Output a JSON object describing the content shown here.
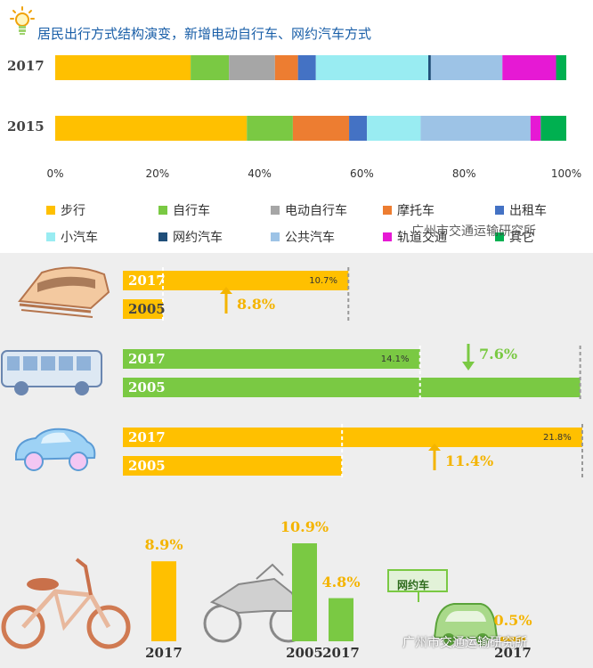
{
  "title": "居民出行方式结构演变，新增电动自行车、网约汽车方式",
  "chart_data": [
    {
      "type": "bar",
      "stacked": true,
      "orientation": "horizontal",
      "categories": [
        "2017",
        "2015"
      ],
      "xlim": [
        0,
        100
      ],
      "xticks": [
        "0%",
        "20%",
        "40%",
        "60%",
        "80%",
        "100%"
      ],
      "legend_position": "bottom",
      "series": [
        {
          "name": "步行",
          "color": "#ffc000",
          "values": [
            26.5,
            37.5
          ]
        },
        {
          "name": "自行车",
          "color": "#7ac943",
          "values": [
            7.5,
            9.0
          ]
        },
        {
          "name": "电动自行车",
          "color": "#a6a6a6",
          "values": [
            9.0,
            0
          ]
        },
        {
          "name": "摩托车",
          "color": "#ed7d31",
          "values": [
            4.5,
            11.0
          ]
        },
        {
          "name": "出租车",
          "color": "#4472c4",
          "values": [
            3.5,
            3.5
          ]
        },
        {
          "name": "小汽车",
          "color": "#99ecf2",
          "values": [
            22.0,
            10.5
          ]
        },
        {
          "name": "网约汽车",
          "color": "#1f4e79",
          "values": [
            0.5,
            0
          ]
        },
        {
          "name": "公共汽车",
          "color": "#9dc3e6",
          "values": [
            14.0,
            21.5
          ]
        },
        {
          "name": "轨道交通",
          "color": "#e619d4",
          "values": [
            10.5,
            2.0
          ]
        },
        {
          "name": "其它",
          "color": "#00b050",
          "values": [
            2.0,
            5.0
          ]
        }
      ]
    },
    {
      "type": "bar",
      "orientation": "horizontal",
      "groups": [
        {
          "mode": "轨道交通",
          "color": "#ffc000",
          "v2017": 10.7,
          "label2017": "10.7%",
          "v2005": 1.9,
          "change": "8.8%",
          "direction": "up",
          "year_a": "2017",
          "year_b": "2005"
        },
        {
          "mode": "公共汽车",
          "color": "#7ac943",
          "v2017": 14.1,
          "label2017": "14.1%",
          "v2005": 21.7,
          "change": "7.6%",
          "direction": "down",
          "year_a": "2017",
          "year_b": "2005"
        },
        {
          "mode": "小汽车",
          "color": "#ffc000",
          "v2017": 21.8,
          "label2017": "21.8%",
          "v2005": 10.4,
          "change": "11.4%",
          "direction": "up",
          "year_a": "2017",
          "year_b": "2005"
        }
      ]
    },
    {
      "type": "bar",
      "orientation": "vertical",
      "bars": [
        {
          "mode": "电动自行车",
          "year": "2017",
          "value": 8.9,
          "label": "8.9%",
          "color": "#ffc000"
        },
        {
          "mode": "摩托车",
          "year": "2005",
          "value": 10.9,
          "label": "10.9%",
          "color": "#7ac943"
        },
        {
          "mode": "摩托车",
          "year": "2017",
          "value": 4.8,
          "label": "4.8%",
          "color": "#7ac943"
        },
        {
          "mode": "网约汽车",
          "year": "2017",
          "value": 0.5,
          "label": "0.5%",
          "color": "#ffc000"
        }
      ]
    }
  ],
  "icons": {
    "ride_hailing_sign": "网约车"
  },
  "watermark": "广州市交通运输研究所"
}
